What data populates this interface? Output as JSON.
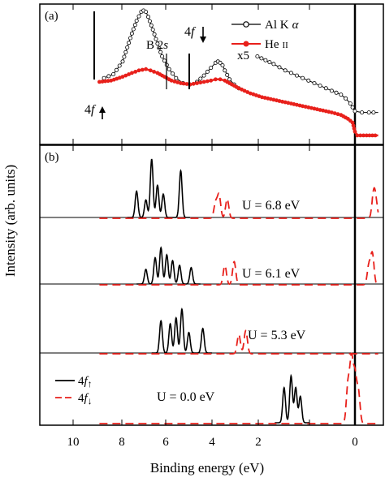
{
  "chart_data": [
    {
      "type": "line",
      "panel_label": "(a)",
      "xlabel": "Binding energy (eV)",
      "ylabel": "Intensity (arb. units)",
      "xlim": [
        11.0,
        -1.0
      ],
      "x_ticks": [
        "10",
        "8",
        "6",
        "4",
        "2",
        "0"
      ],
      "legend_position": "top-right",
      "series": [
        {
          "name": "Al K α",
          "color": "#000000",
          "marker": "open-circle",
          "x": [
            10.8,
            10.4,
            10.0,
            9.8,
            9.6,
            9.4,
            9.2,
            9.1,
            9.0,
            8.9,
            8.7,
            8.5,
            8.3,
            8.0,
            7.7,
            7.4,
            7.1,
            6.8,
            6.5,
            6.2,
            6.0,
            5.9,
            5.8,
            5.7,
            5.6,
            5.4,
            5.2,
            5.0,
            4.8
          ],
          "values": [
            0.47,
            0.5,
            0.6,
            0.71,
            0.82,
            0.92,
            0.99,
            1.0,
            0.99,
            0.95,
            0.85,
            0.74,
            0.64,
            0.54,
            0.47,
            0.43,
            0.42,
            0.44,
            0.49,
            0.55,
            0.59,
            0.6,
            0.59,
            0.57,
            0.53,
            0.46,
            0.42,
            0.39,
            0.37
          ]
        },
        {
          "name": "Al K α (x5)",
          "color": "#000000",
          "marker": "open-circle",
          "x": [
            4.2,
            3.5,
            3.0,
            2.5,
            2.0,
            1.5,
            1.0,
            0.6,
            0.4,
            0.2,
            0.0,
            -0.3,
            -0.6,
            -1.0
          ],
          "values": [
            0.64,
            0.58,
            0.53,
            0.49,
            0.45,
            0.41,
            0.37,
            0.34,
            0.31,
            0.27,
            0.21,
            0.2,
            0.2,
            0.2
          ]
        },
        {
          "name": "He II",
          "color": "#e8201b",
          "marker": "filled-circle",
          "x": [
            11.0,
            10.5,
            10.0,
            9.6,
            9.3,
            9.0,
            8.8,
            8.5,
            8.2,
            7.9,
            7.5,
            7.1,
            6.8,
            6.5,
            6.2,
            6.0,
            5.8,
            5.6,
            5.3,
            5.0,
            4.5,
            4.0,
            3.5,
            3.0,
            2.5,
            2.0,
            1.5,
            1.0,
            0.6,
            0.3,
            0.1,
            0.0,
            -0.1,
            -0.5,
            -1.0
          ],
          "values": [
            0.44,
            0.45,
            0.48,
            0.51,
            0.53,
            0.54,
            0.53,
            0.51,
            0.48,
            0.45,
            0.43,
            0.42,
            0.43,
            0.44,
            0.45,
            0.46,
            0.46,
            0.45,
            0.42,
            0.39,
            0.35,
            0.32,
            0.3,
            0.28,
            0.26,
            0.24,
            0.22,
            0.2,
            0.18,
            0.15,
            0.12,
            0.05,
            0.02,
            0.02,
            0.02
          ]
        }
      ],
      "annotations": [
        {
          "text": "B 2s",
          "x": 6.5
        },
        {
          "text": "4f↓",
          "x": 5.7
        },
        {
          "text": "4f↑",
          "x": 9.0
        },
        {
          "text": "x5",
          "x": 4.3
        }
      ],
      "vertical_line_x": 0.0
    },
    {
      "type": "line",
      "panel_label": "(b)",
      "xlabel": "Binding energy (eV)",
      "xlim": [
        11.0,
        -1.0
      ],
      "legend_position": "bottom-left",
      "legend": [
        {
          "name": "4f↑",
          "color": "#000000",
          "dash": "solid"
        },
        {
          "name": "4f↓",
          "color": "#e8201b",
          "dash": "dashed"
        }
      ],
      "vertical_line_x": 0.0,
      "series": [
        {
          "label": "U = 6.8 eV",
          "up": {
            "x": [
              9.4,
              9.0,
              8.75,
              8.5,
              8.25,
              7.5
            ],
            "values": [
              0.45,
              0.3,
              1.0,
              0.55,
              0.4,
              0.8
            ]
          },
          "down": {
            "x": [
              6.0,
              5.85,
              5.5,
              -0.8,
              -0.9
            ],
            "values": [
              0.2,
              0.3,
              0.25,
              0.3,
              0.2
            ]
          }
        },
        {
          "label": "U = 6.1 eV",
          "up": {
            "x": [
              9.0,
              8.6,
              8.35,
              8.1,
              7.85,
              7.55,
              7.05
            ],
            "values": [
              0.25,
              0.45,
              0.62,
              0.5,
              0.4,
              0.32,
              0.28
            ]
          },
          "down": {
            "x": [
              5.6,
              5.2,
              -0.6,
              -0.75
            ],
            "values": [
              0.25,
              0.3,
              0.25,
              0.4
            ]
          }
        },
        {
          "label": "U = 5.3 eV",
          "up": {
            "x": [
              8.35,
              7.95,
              7.7,
              7.45,
              7.15,
              6.55
            ],
            "values": [
              0.55,
              0.5,
              0.6,
              0.75,
              0.35,
              0.42
            ]
          },
          "down": {
            "x": [
              5.0,
              4.7
            ],
            "values": [
              0.25,
              0.3
            ]
          }
        },
        {
          "label": "U = 0.0 eV",
          "up": {
            "x": [
              3.05,
              2.75,
              2.55,
              2.35
            ],
            "values": [
              0.6,
              0.8,
              0.6,
              0.45
            ]
          },
          "down": {
            "x": [
              0.3,
              0.15,
              0.0,
              -0.15
            ],
            "values": [
              0.5,
              0.8,
              0.6,
              0.4
            ]
          }
        }
      ]
    }
  ],
  "text": {
    "panel_a": "(a)",
    "panel_b": "(b)",
    "ylabel": "Intensity (arb. units)",
    "xlabel": "Binding energy (eV)",
    "legend_al_pre": "Al K",
    "legend_al_alpha": "α",
    "legend_he_pre": "He",
    "legend_he_roman": "II",
    "b2s_pre": "B 2",
    "b2s_s": "s",
    "f_4": "4",
    "f_f": "f",
    "x5": "x5",
    "u68": "U = 6.8 eV",
    "u61": "U = 6.1 eV",
    "u53": "U = 5.3 eV",
    "u00": "U = 0.0 eV",
    "tick_10": "10",
    "tick_8": "8",
    "tick_6": "6",
    "tick_4": "4",
    "tick_2": "2",
    "tick_0": "0"
  }
}
